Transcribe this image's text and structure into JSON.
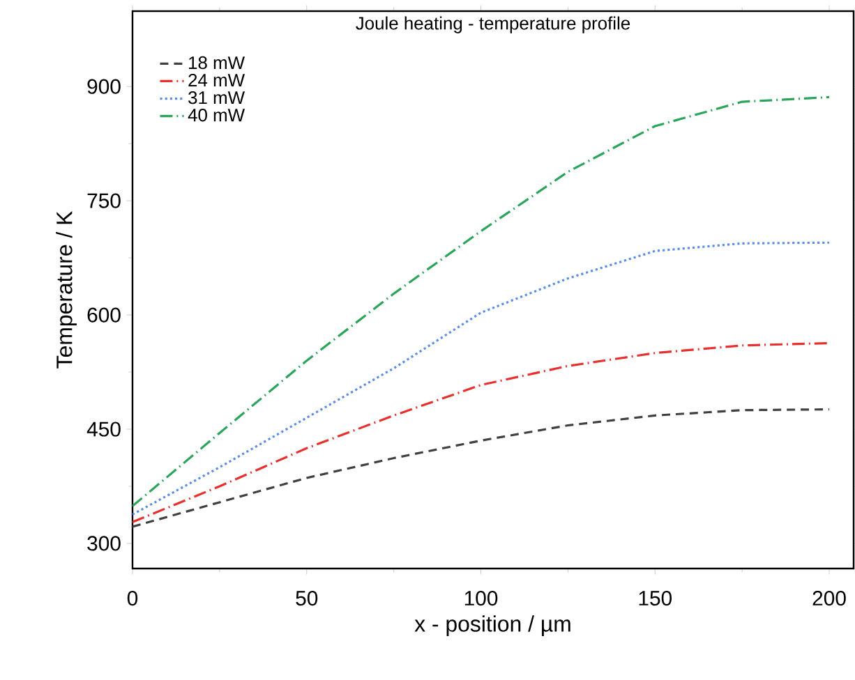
{
  "chart_data": {
    "type": "line",
    "title": "Joule heating - temperature profile",
    "xlabel": "x - position / µm",
    "ylabel": "Temperature / K",
    "x": [
      0,
      25,
      50,
      75,
      100,
      125,
      150,
      175,
      200
    ],
    "series": [
      {
        "name": "18 mW",
        "color": "#404040",
        "line_style": "dashed",
        "values": [
          322,
          354,
          386,
          412,
          435,
          455,
          468,
          475,
          476
        ]
      },
      {
        "name": "24 mW",
        "color": "#e8302e",
        "line_style": "dashdot",
        "values": [
          328,
          375,
          425,
          468,
          508,
          533,
          550,
          560,
          563
        ]
      },
      {
        "name": "31 mW",
        "color": "#5a8ee8",
        "line_style": "dotted",
        "values": [
          338,
          400,
          465,
          530,
          603,
          648,
          684,
          694,
          695
        ]
      },
      {
        "name": "40 mW",
        "color": "#2aa55a",
        "line_style": "dashdot",
        "values": [
          349,
          445,
          540,
          628,
          710,
          788,
          848,
          880,
          886
        ]
      }
    ],
    "xlim": [
      0,
      207
    ],
    "ylim": [
      267,
      999
    ],
    "xticks": [
      0,
      50,
      100,
      150,
      200
    ],
    "yticks": [
      300,
      450,
      600,
      750,
      900
    ],
    "grid": false,
    "legend": "top left",
    "marker": "none"
  }
}
